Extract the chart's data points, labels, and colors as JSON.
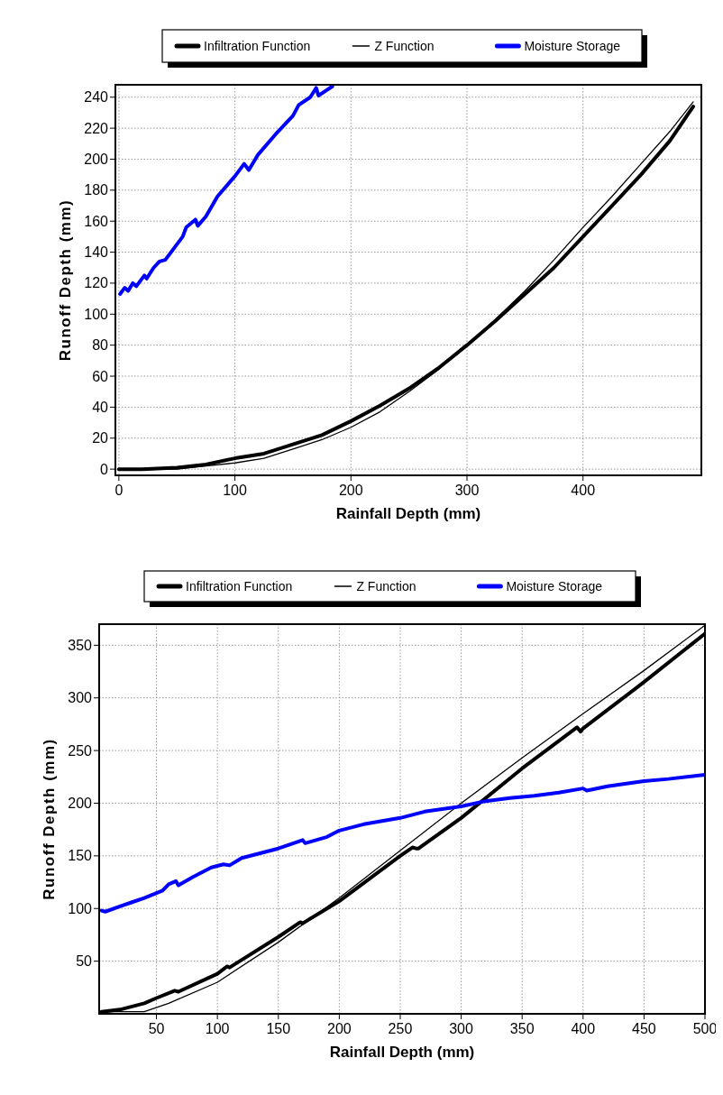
{
  "chart_data": [
    {
      "type": "line",
      "xlabel": "Rainfall Depth (mm)",
      "ylabel": "Runoff Depth (mm)",
      "xlim": [
        -3,
        502
      ],
      "ylim": [
        -4,
        248
      ],
      "xticks": [
        0,
        100,
        200,
        300,
        400
      ],
      "yticks": [
        0,
        20,
        40,
        60,
        80,
        100,
        120,
        140,
        160,
        180,
        200,
        220,
        240
      ],
      "grid": true,
      "legend": "top",
      "line_style": "solid",
      "marker": "none",
      "series": [
        {
          "name": "Infiltration Function",
          "color": "#000000",
          "x": [
            0,
            20,
            50,
            75,
            100,
            125,
            150,
            175,
            200,
            225,
            250,
            275,
            300,
            325,
            350,
            375,
            400,
            425,
            450,
            475,
            495
          ],
          "values": [
            0,
            0,
            1,
            3,
            7,
            10,
            16,
            22,
            31,
            41,
            52,
            65,
            80,
            96,
            113,
            130,
            150,
            170,
            190,
            212,
            234
          ]
        },
        {
          "name": "Z Function",
          "color": "#000000",
          "x": [
            0,
            50,
            75,
            100,
            125,
            150,
            175,
            200,
            225,
            250,
            275,
            300,
            325,
            350,
            375,
            400,
            425,
            450,
            475,
            495
          ],
          "values": [
            0,
            0,
            2,
            4,
            7,
            13,
            19,
            27,
            37,
            50,
            64,
            80,
            97,
            115,
            135,
            156,
            176,
            197,
            218,
            237
          ]
        },
        {
          "name": "Moisture Storage",
          "color": "#0000ff",
          "x": [
            1,
            5,
            8,
            12,
            15,
            22,
            24,
            30,
            35,
            40,
            55,
            58,
            66,
            68,
            75,
            85,
            100,
            108,
            112,
            120,
            135,
            150,
            155,
            165,
            170,
            172,
            178,
            184
          ],
          "values": [
            113,
            117,
            115,
            120,
            118,
            125,
            123,
            130,
            134,
            135,
            150,
            156,
            161,
            157,
            163,
            176,
            189,
            197,
            193,
            203,
            216,
            228,
            235,
            240,
            246,
            241,
            244,
            247
          ]
        }
      ]
    },
    {
      "type": "line",
      "xlabel": "Rainfall Depth (mm)",
      "ylabel": "Runoff Depth (mm)",
      "xlim": [
        3,
        500
      ],
      "ylim": [
        0,
        370
      ],
      "xticks": [
        50,
        100,
        150,
        200,
        250,
        300,
        350,
        400,
        450,
        500
      ],
      "yticks": [
        50,
        100,
        150,
        200,
        250,
        300,
        350
      ],
      "grid": true,
      "legend": "top",
      "line_style": "solid",
      "marker": "none",
      "series": [
        {
          "name": "Infiltration Function",
          "color": "#000000",
          "x": [
            5,
            20,
            40,
            50,
            65,
            68,
            100,
            108,
            110,
            150,
            168,
            170,
            200,
            250,
            260,
            263,
            265,
            300,
            350,
            395,
            398,
            400,
            450,
            500
          ],
          "values": [
            2,
            4,
            10,
            15,
            22,
            21,
            38,
            45,
            44,
            73,
            87,
            86,
            107,
            150,
            158,
            157,
            157,
            186,
            233,
            272,
            268,
            271,
            315,
            361
          ]
        },
        {
          "name": "Z Function",
          "color": "#000000",
          "x": [
            5,
            40,
            60,
            100,
            150,
            200,
            250,
            300,
            350,
            400,
            450,
            500
          ],
          "values": [
            2,
            2,
            10,
            30,
            68,
            110,
            155,
            200,
            243,
            285,
            326,
            369
          ]
        },
        {
          "name": "Moisture Storage",
          "color": "#0000ff",
          "x": [
            5,
            8,
            20,
            30,
            40,
            55,
            60,
            66,
            68,
            80,
            95,
            105,
            110,
            120,
            150,
            170,
            172,
            190,
            200,
            220,
            250,
            270,
            300,
            320,
            340,
            360,
            380,
            400,
            403,
            420,
            450,
            470,
            500
          ],
          "values": [
            98,
            97,
            102,
            106,
            110,
            117,
            123,
            126,
            122,
            130,
            139,
            142,
            141,
            148,
            157,
            165,
            162,
            168,
            174,
            180,
            186,
            192,
            197,
            202,
            205,
            207,
            210,
            214,
            212,
            216,
            221,
            223,
            227
          ]
        }
      ]
    }
  ]
}
